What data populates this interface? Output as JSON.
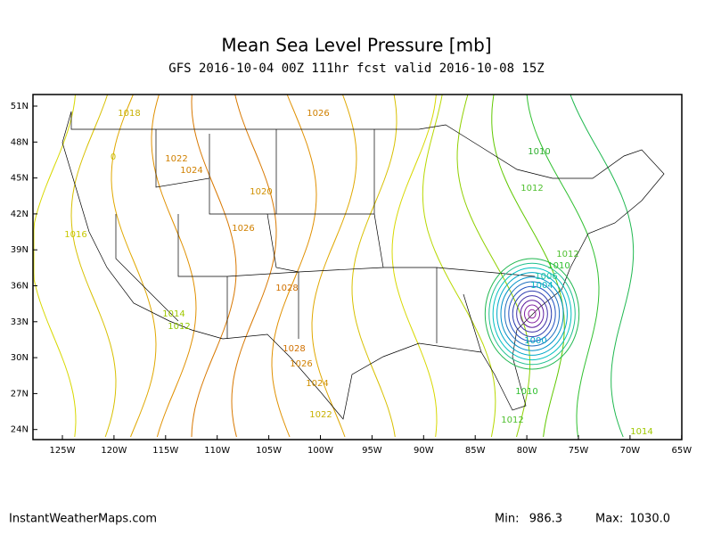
{
  "title": "Mean Sea Level Pressure [mb]",
  "subtitle": "GFS 2016-10-04 00Z 111hr fcst valid 2016-10-08 15Z",
  "lat_labels": [
    "51N",
    "48N",
    "45N",
    "42N",
    "39N",
    "36N",
    "33N",
    "30N",
    "27N",
    "24N"
  ],
  "lon_labels": [
    "125W",
    "120W",
    "115W",
    "110W",
    "105W",
    "100W",
    "95W",
    "90W",
    "85W",
    "80W",
    "75W",
    "70W",
    "65W"
  ],
  "contour_labels": [
    "1018",
    "1026",
    "0",
    "1022",
    "1024",
    "1020",
    "1026",
    "1016",
    "1028",
    "1014",
    "1012",
    "1028",
    "1026",
    "1024",
    "1022",
    "1010",
    "1012",
    "1012",
    "1010",
    "1006",
    "1004",
    "1000",
    "1010",
    "1012",
    "1014"
  ],
  "footer": {
    "source": "InstantWeatherMaps.com",
    "min_label": "Min:",
    "min": "986.3",
    "max_label": "Max:",
    "max": "1030.0"
  }
}
